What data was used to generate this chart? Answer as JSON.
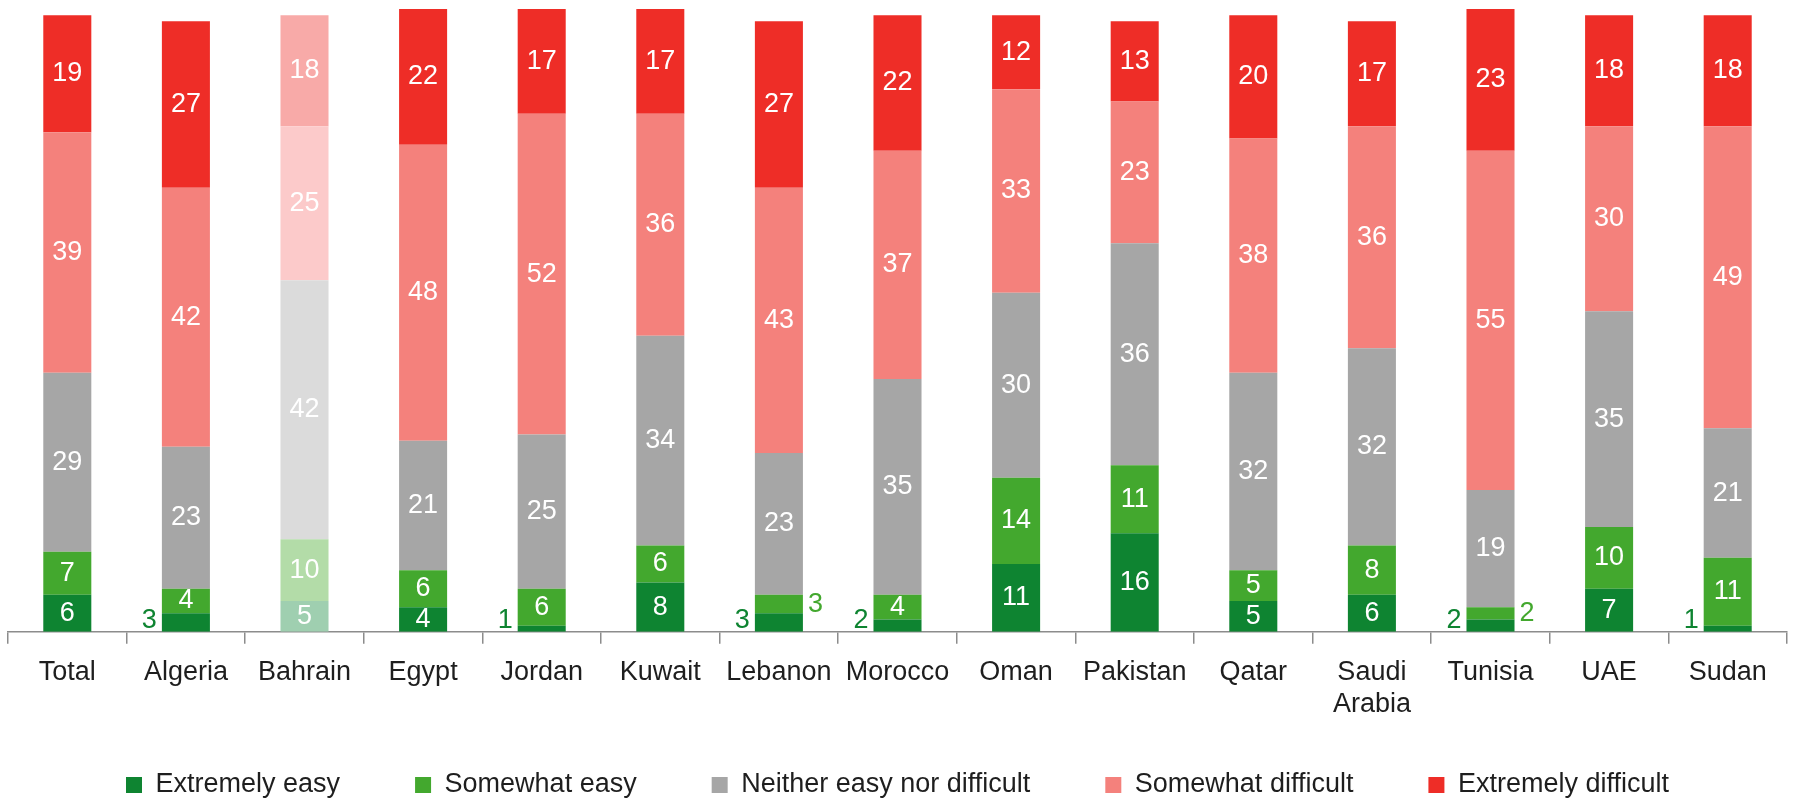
{
  "chart_data": {
    "type": "bar",
    "stacked": true,
    "tick_labels": "x",
    "data_labels": true,
    "legend": "bottom",
    "categories": [
      "Total",
      "Algeria",
      "Bahrain",
      "Egypt",
      "Jordan",
      "Kuwait",
      "Lebanon",
      "Morocco",
      "Oman",
      "Pakistan",
      "Qatar",
      "Saudi Arabia",
      "Tunisia",
      "UAE",
      "Sudan"
    ],
    "series": [
      {
        "name": "Extremely easy",
        "color": "#0e8431",
        "colors": [
          "#0e8431",
          "#0e8431",
          "#9fcfb0",
          "#0e8431",
          "#0e8431",
          "#0e8431",
          "#0e8431",
          "#0e8431",
          "#0e8431",
          "#0e8431",
          "#0e8431",
          "#0e8431",
          "#0e8431",
          "#0e8431",
          "#0e8431"
        ],
        "values": [
          6,
          3,
          5,
          4,
          1,
          8,
          3,
          2,
          11,
          16,
          5,
          6,
          2,
          7,
          1
        ]
      },
      {
        "name": "Somewhat easy",
        "color": "#43a82e",
        "colors": [
          "#43a82e",
          "#43a82e",
          "#b3dca8",
          "#43a82e",
          "#43a82e",
          "#43a82e",
          "#43a82e",
          "#43a82e",
          "#43a82e",
          "#43a82e",
          "#43a82e",
          "#43a82e",
          "#43a82e",
          "#43a82e",
          "#43a82e"
        ],
        "values": [
          7,
          4,
          10,
          6,
          6,
          6,
          3,
          4,
          14,
          11,
          5,
          8,
          2,
          10,
          11
        ]
      },
      {
        "name": "Neither easy nor difficult",
        "color": "#a6a6a6",
        "colors": [
          "#a6a6a6",
          "#a6a6a6",
          "#dbdbdb",
          "#a6a6a6",
          "#a6a6a6",
          "#a6a6a6",
          "#a6a6a6",
          "#a6a6a6",
          "#a6a6a6",
          "#a6a6a6",
          "#a6a6a6",
          "#a6a6a6",
          "#a6a6a6",
          "#a6a6a6",
          "#a6a6a6"
        ],
        "values": [
          29,
          23,
          42,
          21,
          25,
          34,
          23,
          35,
          30,
          36,
          32,
          32,
          19,
          35,
          21
        ]
      },
      {
        "name": "Somewhat difficult",
        "color": "#f4817c",
        "colors": [
          "#f4817c",
          "#f4817c",
          "#fccaca",
          "#f4817c",
          "#f4817c",
          "#f4817c",
          "#f4817c",
          "#f4817c",
          "#f4817c",
          "#f4817c",
          "#f4817c",
          "#f4817c",
          "#f4817c",
          "#f4817c",
          "#f4817c"
        ],
        "values": [
          39,
          42,
          25,
          48,
          52,
          36,
          43,
          37,
          33,
          23,
          38,
          36,
          55,
          30,
          49
        ]
      },
      {
        "name": "Extremely difficult",
        "color": "#ee2d27",
        "colors": [
          "#ee2d27",
          "#ee2d27",
          "#f8aaa8",
          "#ee2d27",
          "#ee2d27",
          "#ee2d27",
          "#ee2d27",
          "#ee2d27",
          "#ee2d27",
          "#ee2d27",
          "#ee2d27",
          "#ee2d27",
          "#ee2d27",
          "#ee2d27",
          "#ee2d27"
        ],
        "values": [
          19,
          27,
          18,
          22,
          17,
          17,
          27,
          22,
          12,
          13,
          20,
          17,
          23,
          18,
          18
        ]
      }
    ]
  }
}
